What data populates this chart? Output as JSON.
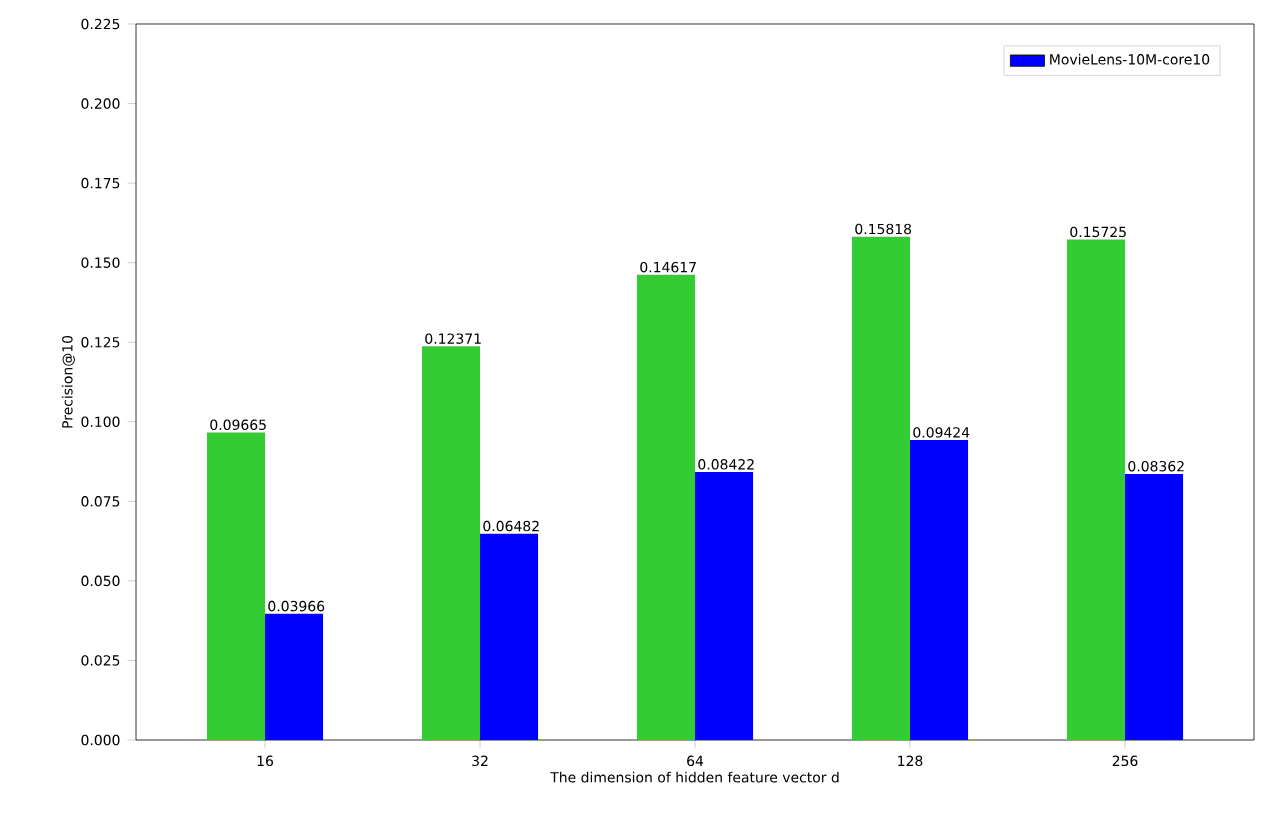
{
  "chart_data": {
    "type": "bar",
    "xlabel": "The dimension of hidden feature vector d",
    "ylabel": "Precision@10",
    "categories": [
      "16",
      "32",
      "64",
      "128",
      "256"
    ],
    "series": [
      {
        "color": "#33cc33",
        "values": [
          0.09665,
          0.12371,
          0.14617,
          0.15818,
          0.15725
        ]
      },
      {
        "name": "MovieLens-10M-core10",
        "color": "#0000ff",
        "values": [
          0.03966,
          0.06482,
          0.08422,
          0.09424,
          0.08362
        ]
      }
    ],
    "ylim": [
      0,
      0.225
    ],
    "yticks": [
      {
        "value": 0,
        "label": "0.000"
      },
      {
        "value": 0.025,
        "label": "0.025"
      },
      {
        "value": 0.05,
        "label": "0.050"
      },
      {
        "value": 0.075,
        "label": "0.075"
      },
      {
        "value": 0.1,
        "label": "0.100"
      },
      {
        "value": 0.125,
        "label": "0.125"
      },
      {
        "value": 0.15,
        "label": "0.150"
      },
      {
        "value": 0.175,
        "label": "0.175"
      },
      {
        "value": 0.2,
        "label": "0.200"
      },
      {
        "value": 0.225,
        "label": "0.225"
      }
    ],
    "data_labels": true,
    "legend": "top right",
    "grid": false
  }
}
